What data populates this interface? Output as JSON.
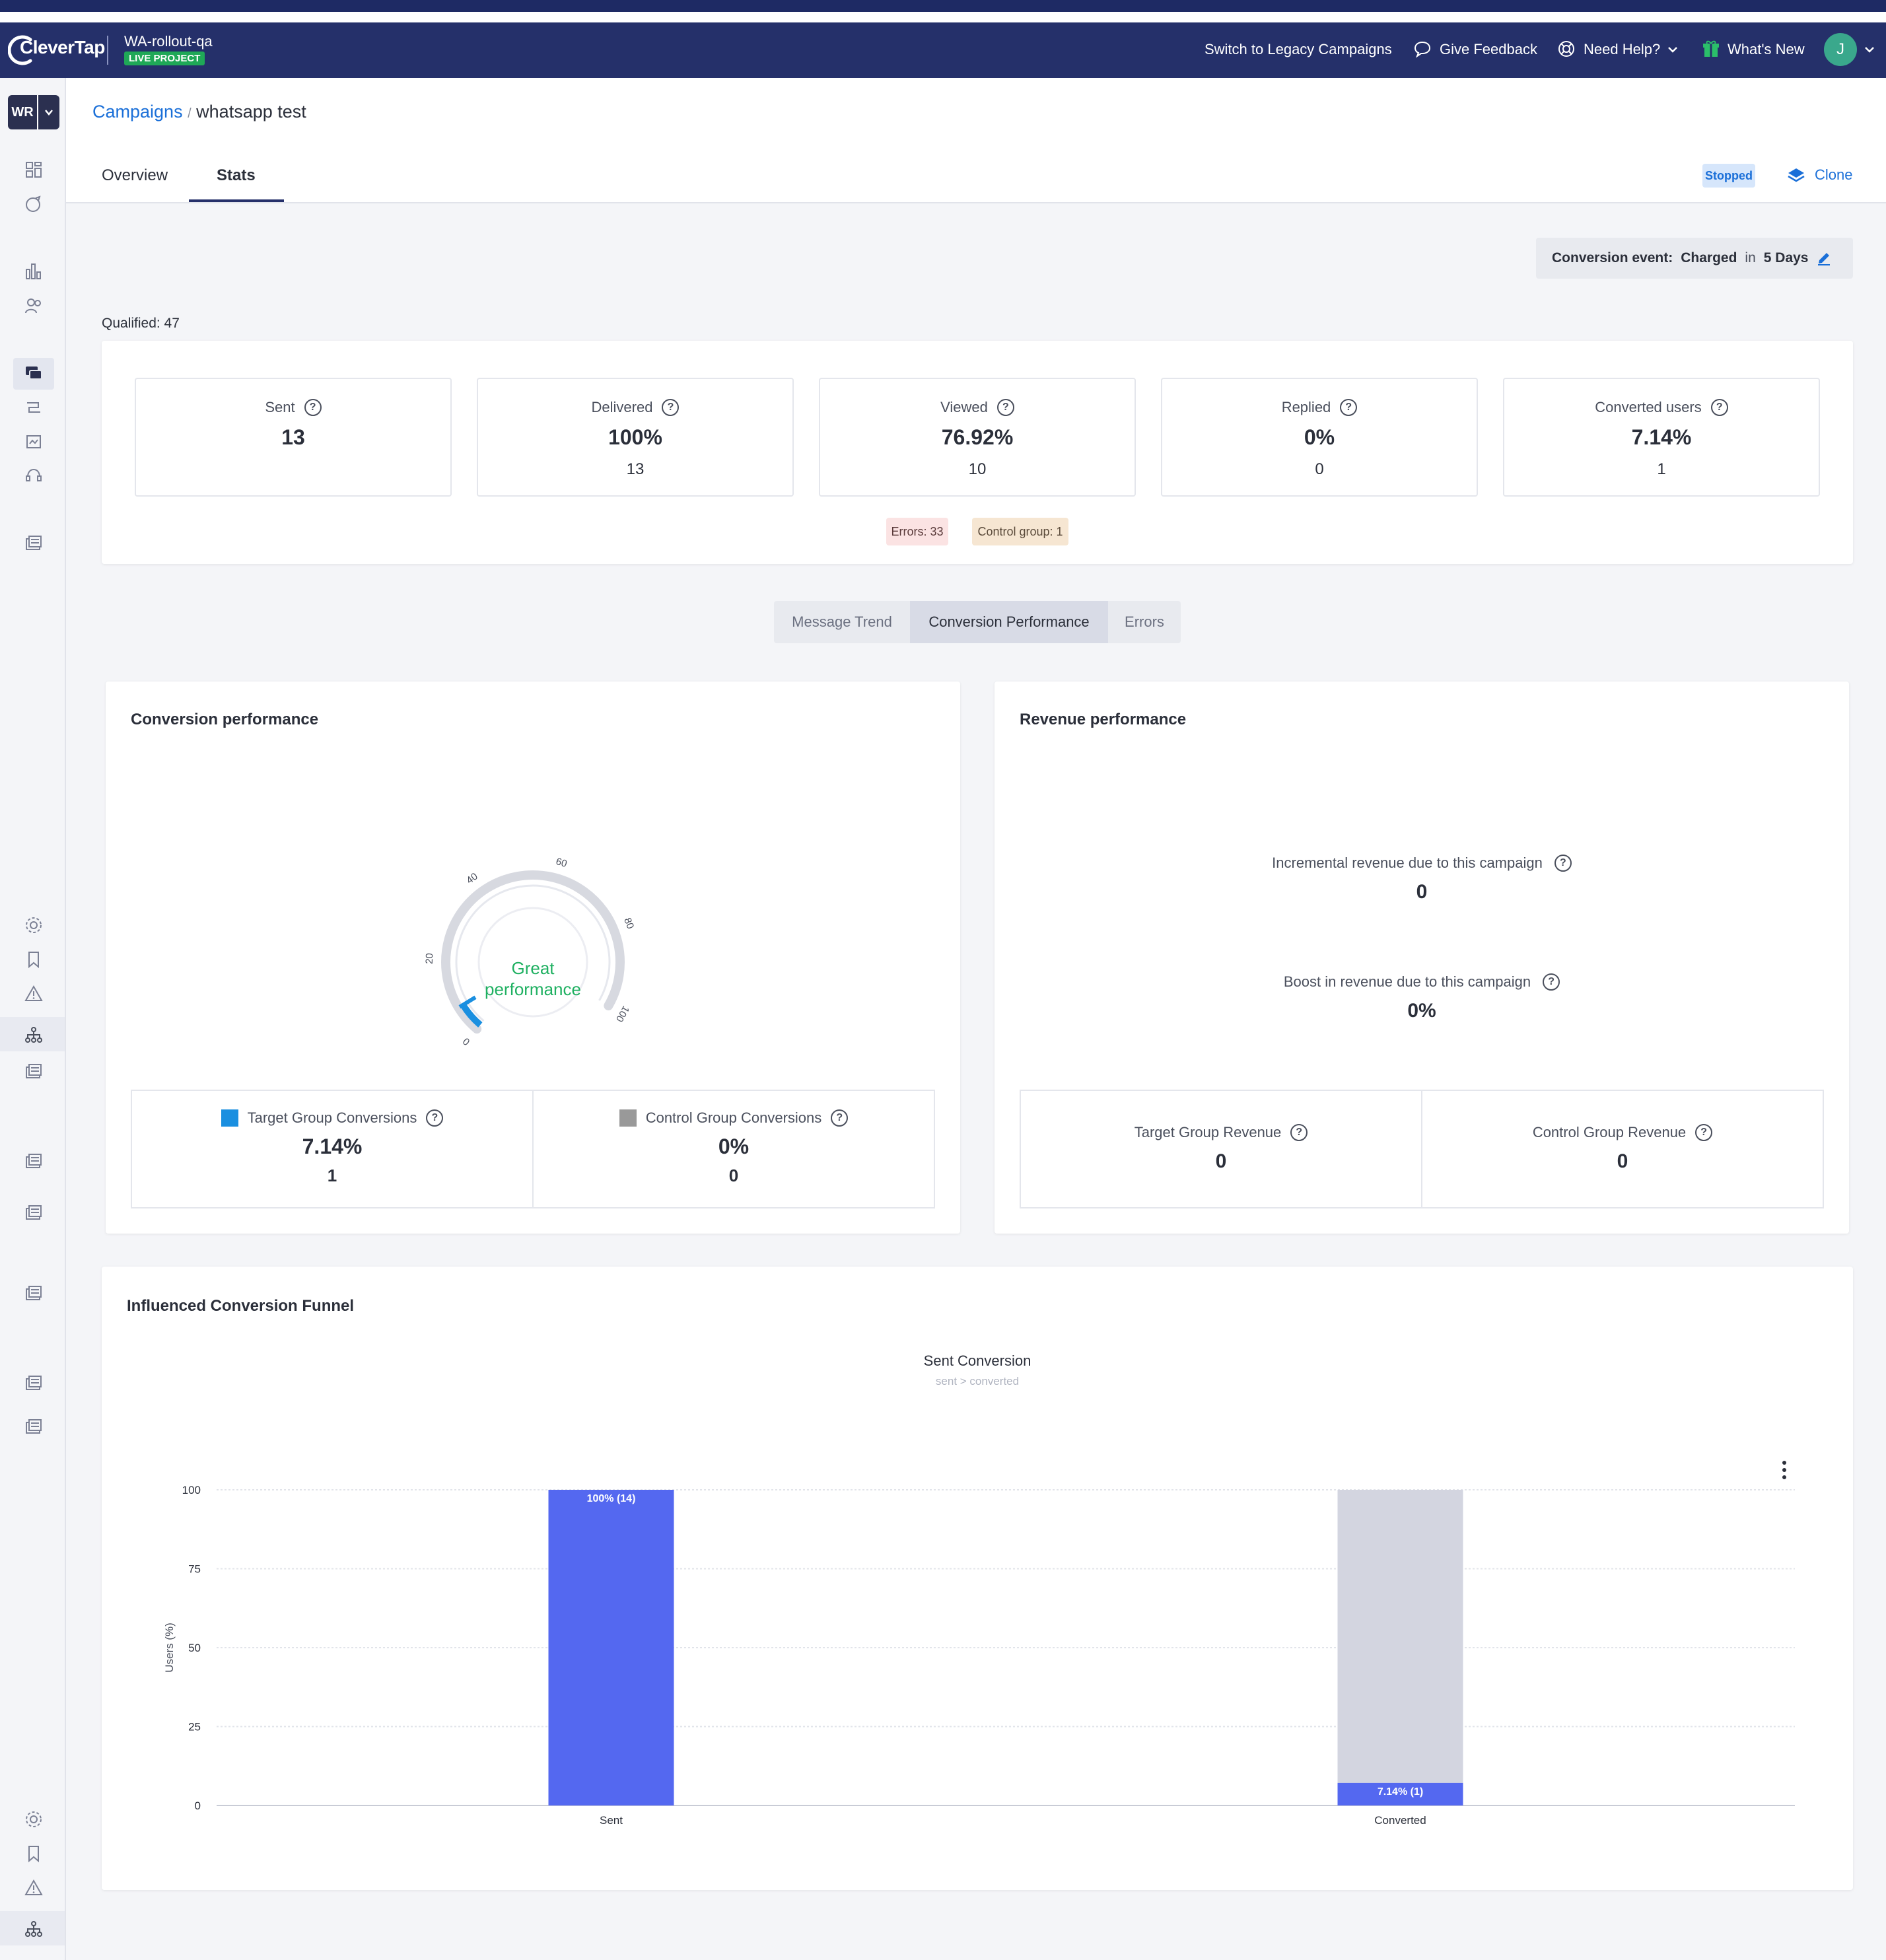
{
  "header": {
    "logo_text": "CleverTap",
    "project_name": "WA-rollout-qa",
    "project_badge": "LIVE PROJECT",
    "legacy_link": "Switch to Legacy Campaigns",
    "feedback": "Give Feedback",
    "help": "Need Help?",
    "whats_new": "What's New",
    "avatar_initial": "J"
  },
  "sidebar": {
    "account_initials": "WR"
  },
  "breadcrumb": {
    "parent": "Campaigns",
    "separator": "/",
    "current": "whatsapp test"
  },
  "tabs": {
    "overview": "Overview",
    "stats": "Stats"
  },
  "status_badge": "Stopped",
  "clone_label": "Clone",
  "conversion_event": {
    "label": "Conversion event:",
    "event": "Charged",
    "in": "in",
    "window": "5 Days"
  },
  "qualified": "Qualified: 47",
  "metrics": [
    {
      "label": "Sent",
      "value": "13",
      "sub": ""
    },
    {
      "label": "Delivered",
      "value": "100%",
      "sub": "13"
    },
    {
      "label": "Viewed",
      "value": "76.92%",
      "sub": "10"
    },
    {
      "label": "Replied",
      "value": "0%",
      "sub": "0"
    },
    {
      "label": "Converted users",
      "value": "7.14%",
      "sub": "1"
    }
  ],
  "badges": {
    "errors": "Errors: 33",
    "control_group": "Control group: 1"
  },
  "segment_tabs": {
    "message_trend": "Message Trend",
    "conversion_performance": "Conversion Performance",
    "errors": "Errors"
  },
  "conversion_performance": {
    "title": "Conversion performance",
    "gauge_text_line1": "Great",
    "gauge_text_line2": "performance",
    "gauge_value": 7.14,
    "gauge_ticks": [
      "0",
      "20",
      "40",
      "60",
      "80",
      "100"
    ],
    "target": {
      "label": "Target Group Conversions",
      "value": "7.14%",
      "sub": "1",
      "color": "#1a8fe0"
    },
    "control": {
      "label": "Control Group Conversions",
      "value": "0%",
      "sub": "0",
      "color": "#999999"
    }
  },
  "revenue_performance": {
    "title": "Revenue performance",
    "incremental_label": "Incremental revenue due to this campaign",
    "incremental_value": "0",
    "boost_label": "Boost in revenue due to this campaign",
    "boost_value": "0%",
    "target_label": "Target Group Revenue",
    "target_value": "0",
    "control_label": "Control Group Revenue",
    "control_value": "0"
  },
  "funnel": {
    "title": "Influenced Conversion Funnel",
    "chart_title": "Sent Conversion",
    "chart_subtitle": "sent > converted"
  },
  "chart_data": {
    "type": "bar",
    "title": "Sent Conversion",
    "subtitle": "sent > converted",
    "categories": [
      "Sent",
      "Converted"
    ],
    "values": [
      100,
      7.14
    ],
    "data_labels": [
      "100% (14)",
      "7.14% (1)"
    ],
    "ylabel": "Users (%)",
    "ylim": [
      0,
      100
    ],
    "yticks": [
      "0",
      "25",
      "50",
      "75",
      "100"
    ],
    "bar_color": "#5468f0",
    "remainder_color": "#d3d5e0"
  }
}
